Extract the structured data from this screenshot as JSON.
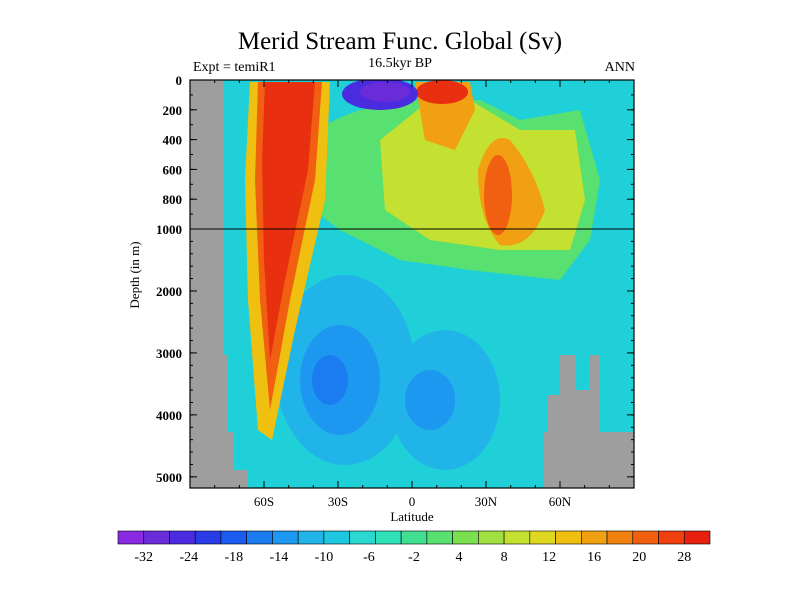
{
  "chart": {
    "title": "Merid Stream Func. Global (Sv)",
    "left_label": "Expt = temiR1",
    "center_label": "16.5kyr BP",
    "right_label": "ANN"
  },
  "chart_data": {
    "type": "heatmap",
    "title": "Merid Stream Func. Global (Sv)",
    "xlabel": "Latitude",
    "ylabel": "Depth (in m)",
    "x_ticks": [
      "60S",
      "30S",
      "0",
      "30N",
      "60N"
    ],
    "y_ticks_upper": [
      "0",
      "200",
      "400",
      "600",
      "800",
      "1000"
    ],
    "y_ticks_lower": [
      "2000",
      "3000",
      "4000",
      "5000"
    ],
    "colorbar_labels": [
      "-32",
      "-24",
      "-18",
      "-14",
      "-10",
      "-6",
      "-2",
      "4",
      "8",
      "12",
      "16",
      "20",
      "28"
    ],
    "colorbar_colors": [
      "#8a2be2",
      "#6a2bd9",
      "#4a2be0",
      "#2a3be8",
      "#1a5bf0",
      "#1a7cf0",
      "#1d98f0",
      "#20b4e8",
      "#1ec8e0",
      "#2ad8d0",
      "#30e0b8",
      "#40e090",
      "#58e070",
      "#7ae050",
      "#a0e040",
      "#c4e030",
      "#e0d820",
      "#f0c010",
      "#f0a010",
      "#f08010",
      "#f06010",
      "#f04010",
      "#e82010"
    ],
    "colors": {
      "background_field": "#20d0d8",
      "land": "#9e9e9e",
      "frame": "#000000"
    }
  }
}
